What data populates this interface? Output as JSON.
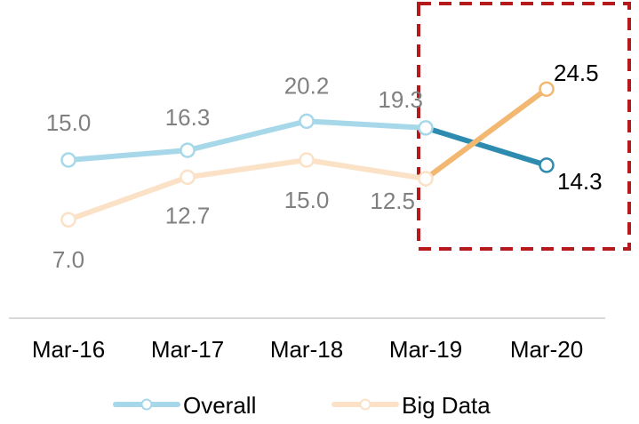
{
  "chart_data": {
    "type": "line",
    "categories": [
      "Mar-16",
      "Mar-17",
      "Mar-18",
      "Mar-19",
      "Mar-20"
    ],
    "series": [
      {
        "name": "Overall",
        "values": [
          15.0,
          16.3,
          20.2,
          19.3,
          14.3
        ],
        "labels": [
          "15.0",
          "16.3",
          "20.2",
          "19.3",
          "14.3"
        ],
        "color": "#A6D8EA",
        "highlight_color": "#2E8BB0"
      },
      {
        "name": "Big Data",
        "values": [
          7.0,
          12.7,
          15.0,
          12.5,
          24.5
        ],
        "labels": [
          "7.0",
          "12.7",
          "15.0",
          "12.5",
          "24.5"
        ],
        "color": "#FBE1C6",
        "highlight_color": "#F2B770"
      }
    ],
    "highlight_segment": [
      "Mar-19",
      "Mar-20"
    ],
    "highlight_box_color": "#B5191C",
    "faded_label_color": "#808080",
    "highlight_label_color": "#000000",
    "axis_color": "#D9D9D9",
    "legend_position": "bottom",
    "grid": false,
    "title": "",
    "xlabel": "",
    "ylabel": ""
  }
}
